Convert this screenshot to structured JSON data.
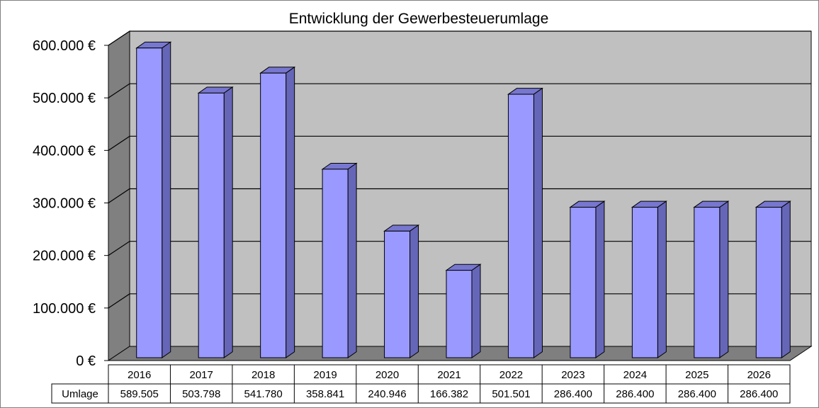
{
  "chart_data": {
    "type": "bar",
    "title": "Entwicklung der Gewerbesteuerumlage",
    "categories": [
      "2016",
      "2017",
      "2018",
      "2019",
      "2020",
      "2021",
      "2022",
      "2023",
      "2024",
      "2025",
      "2026"
    ],
    "series": [
      {
        "name": "Umlage",
        "values": [
          589505,
          503798,
          541780,
          358841,
          240946,
          166382,
          501501,
          286400,
          286400,
          286400,
          286400
        ],
        "labels": [
          "589.505",
          "503.798",
          "541.780",
          "358.841",
          "240.946",
          "166.382",
          "501.501",
          "286.400",
          "286.400",
          "286.400",
          "286.400"
        ],
        "color": "#9999ff"
      }
    ],
    "ylim": [
      0,
      600000
    ],
    "yticks": [
      0,
      100000,
      200000,
      300000,
      400000,
      500000,
      600000
    ],
    "ytick_labels": [
      "0 €",
      "100.000 €",
      "200.000 €",
      "300.000 €",
      "400.000 €",
      "500.000 €",
      "600.000 €"
    ],
    "grid": true,
    "data_table": true,
    "colors": {
      "bar_front": "#9999ff",
      "bar_side": "#6666b8",
      "bar_top": "#7777d0",
      "back_wall": "#c0c0c0",
      "side_wall": "#808080",
      "floor": "#7f7f7f"
    }
  }
}
